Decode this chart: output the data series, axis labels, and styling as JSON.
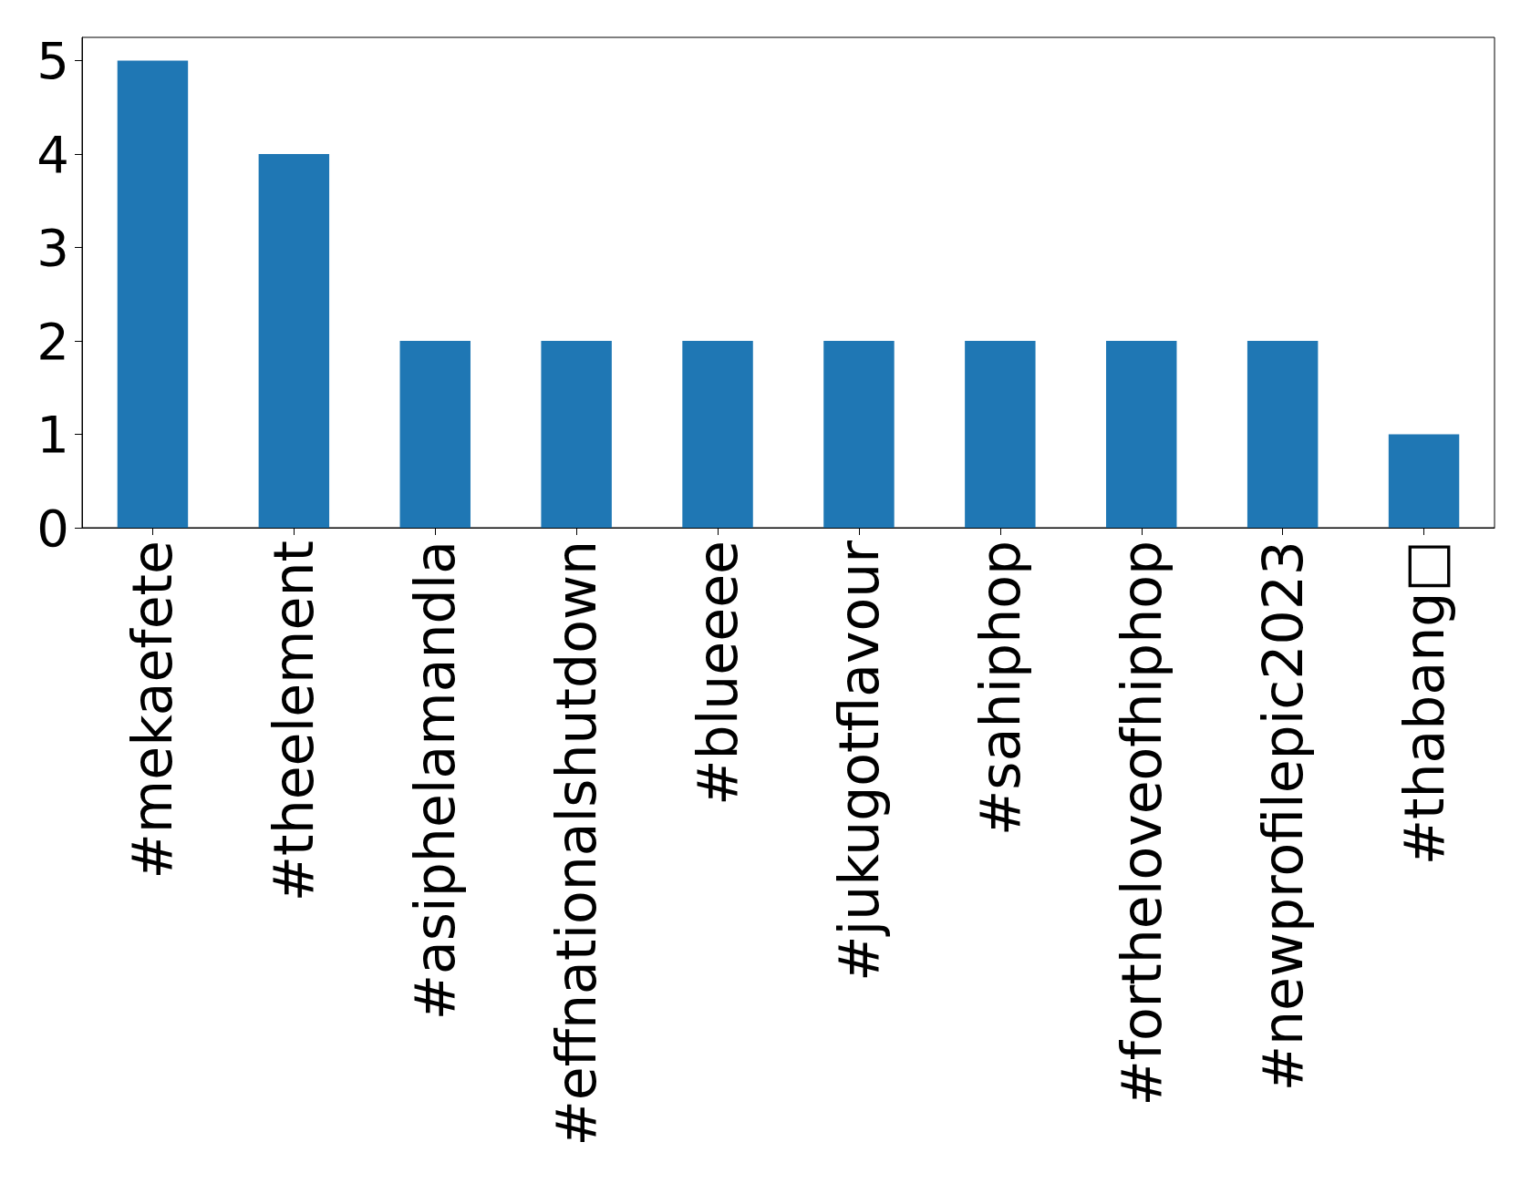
{
  "chart_data": {
    "type": "bar",
    "categories": [
      "#mekaefete",
      "#theelement",
      "#asiphelamandla",
      "#effnationalshutdown",
      "#blueeee",
      "#jukugotflavour",
      "#sahiphop",
      "#fortheloveofhiphop",
      "#newprofilepic2023",
      "#thabang□"
    ],
    "values": [
      5,
      4,
      2,
      2,
      2,
      2,
      2,
      2,
      2,
      1
    ],
    "color": "#1f77b4",
    "ylim": [
      0,
      5.25
    ],
    "yticks": [
      0,
      1,
      2,
      3,
      4,
      5
    ],
    "grid": false
  }
}
